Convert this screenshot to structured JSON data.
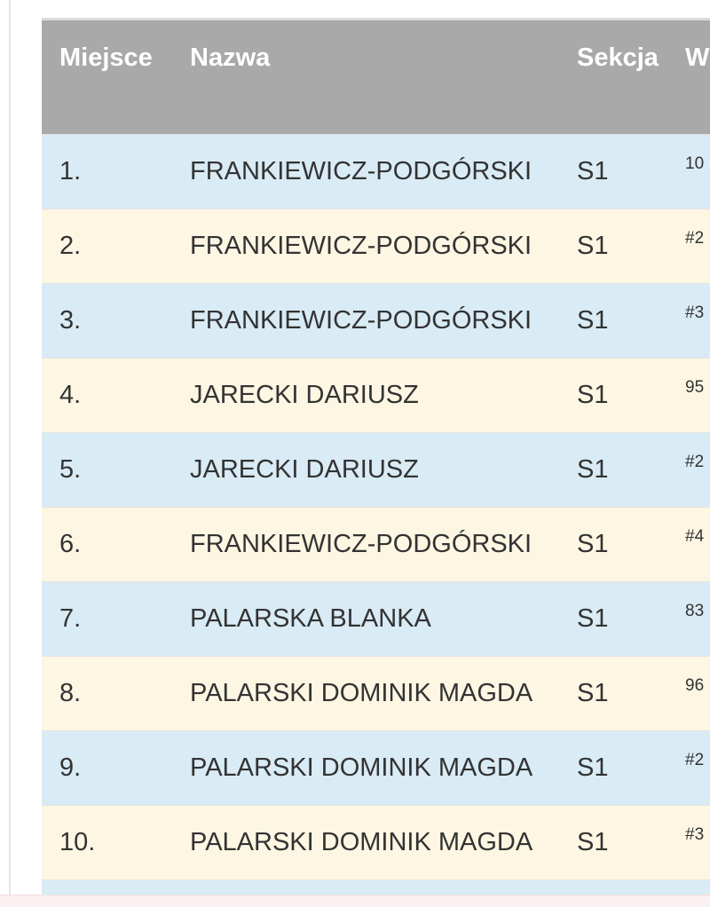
{
  "table": {
    "headers": [
      "Miejsce",
      "Nazwa",
      "Sekcja",
      "W"
    ],
    "rows": [
      {
        "place": "1.",
        "name": "FRANKIEWICZ-PODGÓRSKI",
        "section": "S1",
        "w": "10"
      },
      {
        "place": "2.",
        "name": "FRANKIEWICZ-PODGÓRSKI",
        "section": "S1",
        "w": "#2"
      },
      {
        "place": "3.",
        "name": "FRANKIEWICZ-PODGÓRSKI",
        "section": "S1",
        "w": "#3"
      },
      {
        "place": "4.",
        "name": "JARECKI DARIUSZ",
        "section": "S1",
        "w": "95"
      },
      {
        "place": "5.",
        "name": "JARECKI DARIUSZ",
        "section": "S1",
        "w": "#2"
      },
      {
        "place": "6.",
        "name": "FRANKIEWICZ-PODGÓRSKI",
        "section": "S1",
        "w": "#4"
      },
      {
        "place": "7.",
        "name": "PALARSKA BLANKA",
        "section": "S1",
        "w": "83"
      },
      {
        "place": "8.",
        "name": "PALARSKI DOMINIK MAGDA",
        "section": "S1",
        "w": "96"
      },
      {
        "place": "9.",
        "name": "PALARSKI DOMINIK MAGDA",
        "section": "S1",
        "w": "#2"
      },
      {
        "place": "10.",
        "name": "PALARSKI DOMINIK MAGDA",
        "section": "S1",
        "w": "#3"
      }
    ]
  },
  "colors": {
    "header": "#a9a9a9",
    "row_odd": "#d9ebf5",
    "row_even": "#fcf6e3"
  }
}
